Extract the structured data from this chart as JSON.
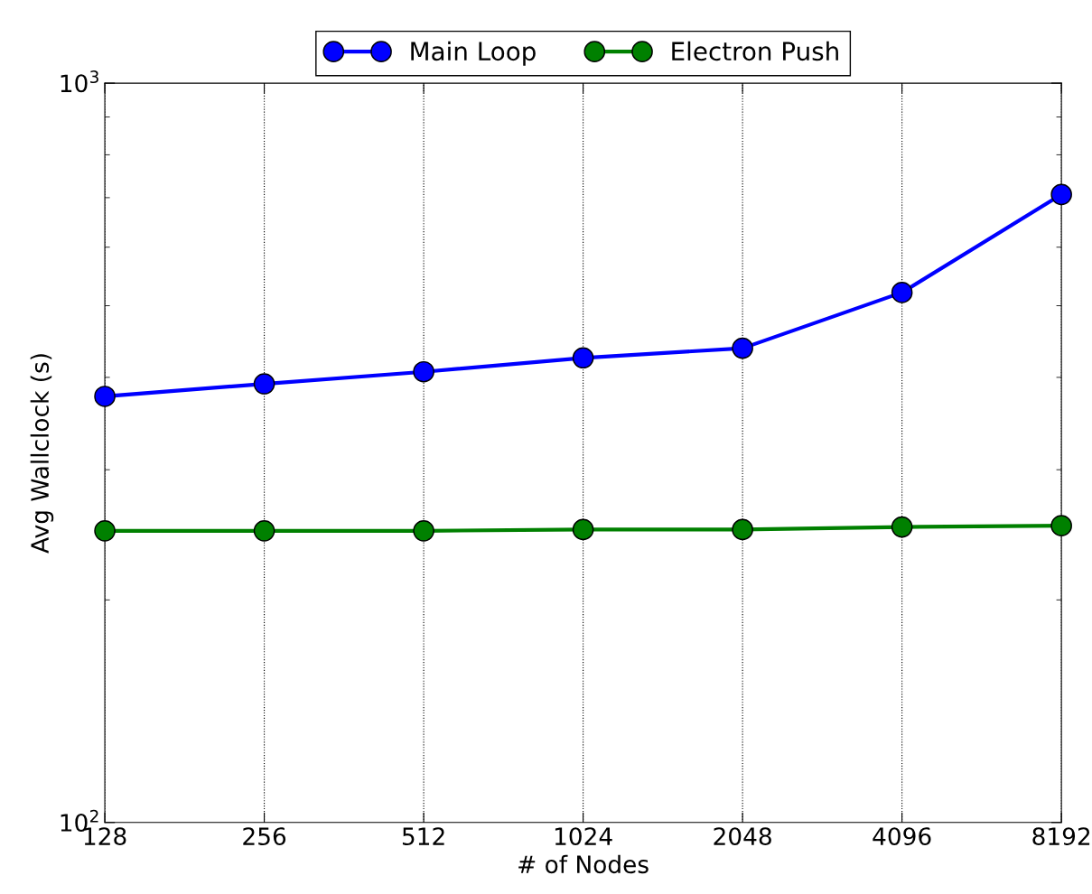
{
  "chart_data": {
    "type": "line",
    "xlabel": "# of Nodes",
    "ylabel": "Avg Wallclock (s)",
    "x": [
      128,
      256,
      512,
      1024,
      2048,
      4096,
      8192
    ],
    "series": [
      {
        "name": "Main Loop",
        "color": "#0000ff",
        "values": [
          377,
          392,
          407,
          425,
          438,
          521,
          707
        ]
      },
      {
        "name": "Electron Push",
        "color": "#008000",
        "values": [
          248,
          248,
          248,
          249,
          249,
          251,
          252
        ]
      }
    ],
    "log": "xy",
    "xlim": [
      128,
      8192
    ],
    "xticks": [
      128,
      256,
      512,
      1024,
      2048,
      4096,
      8192
    ],
    "ylim": [
      100,
      1000
    ],
    "yticks": [
      {
        "value": 100,
        "label": "10$^{2}$"
      },
      {
        "value": 1000,
        "label": "10$^{3}$"
      }
    ],
    "grid": "x",
    "legend": "top",
    "marker": "circle",
    "line_style": "solid"
  }
}
